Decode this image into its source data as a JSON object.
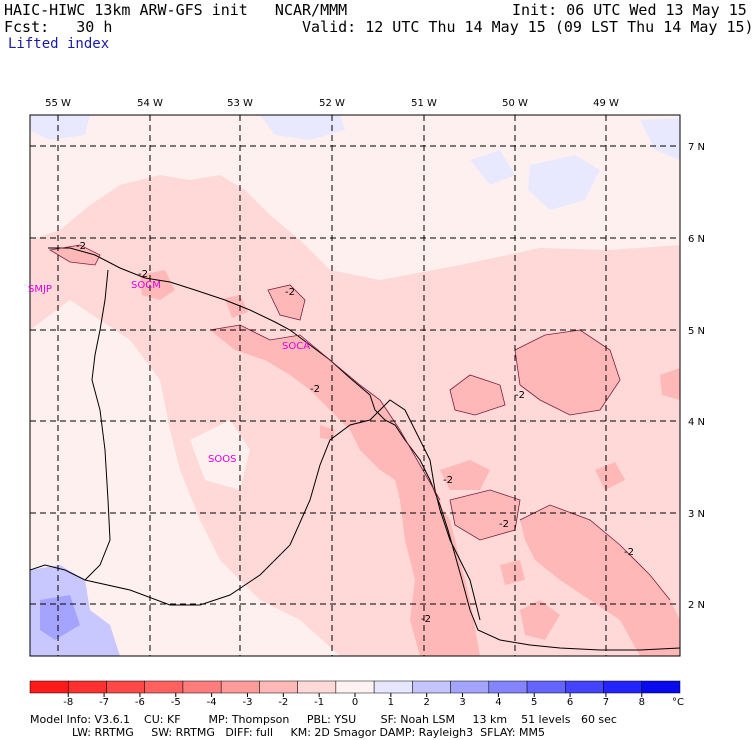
{
  "header": {
    "model_line": "HAIC-HIWC 13km ARW-GFS init   NCAR/MMM",
    "fcst_line": "Fcst:   30 h",
    "init_line": "Init: 06 UTC Wed 13 May 15",
    "valid_line": "Valid: 12 UTC Thu 14 May 15 (09 LST Thu 14 May 15)",
    "field_name": "Lifted index"
  },
  "map": {
    "lon_labels": [
      "55 W",
      "54 W",
      "53 W",
      "52 W",
      "51 W",
      "50 W",
      "49 W"
    ],
    "lat_labels": [
      "7 N",
      "6 N",
      "5 N",
      "4 N",
      "3 N",
      "2 N"
    ],
    "stations": [
      "SMJP",
      "SOCM",
      "SOCA",
      "SOOS"
    ],
    "contour_labels": [
      "-2",
      "-2",
      "-2",
      "-2",
      "-2",
      "-2",
      "-2",
      "-2",
      "-2"
    ]
  },
  "colorbar": {
    "ticks": [
      "-8",
      "-7",
      "-6",
      "-5",
      "-4",
      "-3",
      "-2",
      "-1",
      "0",
      "1",
      "2",
      "3",
      "4",
      "5",
      "6",
      "7",
      "8"
    ],
    "unit": "°C",
    "colors": [
      "#ff1a1a",
      "#ff3030",
      "#ff4848",
      "#ff6060",
      "#ff7d7d",
      "#ff9b9b",
      "#ffb8b8",
      "#ffd8d8",
      "#fff2f2",
      "#e6e6ff",
      "#c4c4ff",
      "#a4a4ff",
      "#8484ff",
      "#6464ff",
      "#4444ff",
      "#2424ff",
      "#0a0aee"
    ]
  },
  "footer": {
    "line1": "Model Info: V3.6.1    CU: KF        MP: Thompson     PBL: YSU       SF: Noah LSM     13 km    51 levels   60 sec",
    "line2": "            LW: RRTMG     SW: RRTMG   DIFF: full     KM: 2D Smagor DAMP: Rayleigh3  SFLAY: MM5"
  }
}
